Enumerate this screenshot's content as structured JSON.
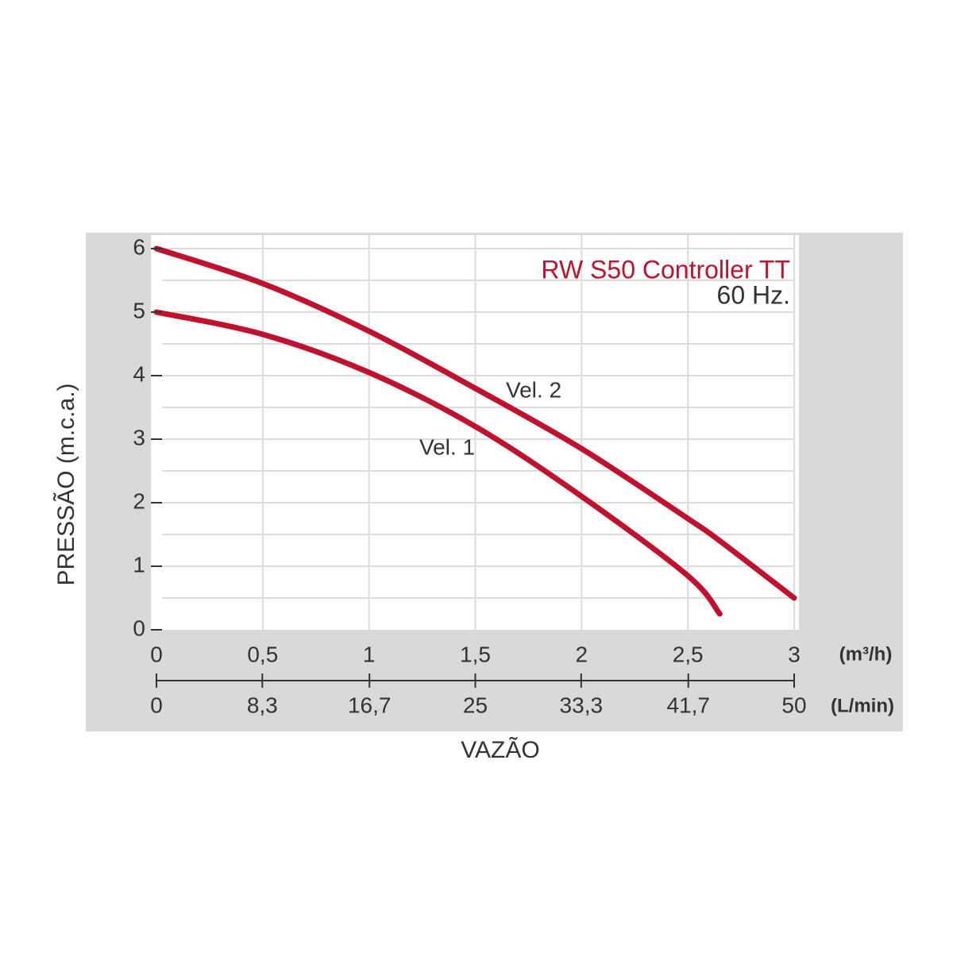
{
  "chart_data": {
    "type": "line",
    "title": "RW S50 Controller TT",
    "subtitle": "60 Hz.",
    "y_label": "PRESSÃO (m.c.a.)",
    "x_label": "VAZÃO",
    "x_unit": "(m³/h)",
    "x2_unit": "(L/min)",
    "x": [
      0,
      0.5,
      1,
      1.5,
      2,
      2.5,
      2.65,
      3
    ],
    "series": [
      {
        "name": "Vel. 1",
        "color": "#c0122f",
        "values": [
          5,
          4.65,
          4.05,
          3.2,
          2.1,
          0.85,
          0.25,
          null
        ]
      },
      {
        "name": "Vel. 2",
        "color": "#c0122f",
        "values": [
          6,
          5.45,
          4.7,
          3.8,
          2.85,
          1.75,
          1.4,
          0.5
        ]
      }
    ],
    "xlim": [
      0,
      3
    ],
    "xticks": [
      0,
      {
        "value": 0.5,
        "label": "0,5"
      },
      1,
      {
        "value": 1.5,
        "label": "1,5"
      },
      2,
      {
        "value": 2.5,
        "label": "2,5"
      },
      3
    ],
    "x2lim": [
      0,
      50
    ],
    "x2ticks": [
      0,
      {
        "value": 8.3,
        "label": "8,3"
      },
      {
        "value": 16.7,
        "label": "16,7"
      },
      25,
      {
        "value": 33.3,
        "label": "33,3"
      },
      {
        "value": 41.7,
        "label": "41,7"
      },
      50
    ],
    "ylim": [
      0,
      6
    ],
    "yticks": [
      0,
      1,
      2,
      3,
      4,
      5,
      6
    ],
    "yminorticks": [
      0.5,
      1.5,
      2.5,
      3.5,
      4.5,
      5.5
    ],
    "grid": true
  }
}
